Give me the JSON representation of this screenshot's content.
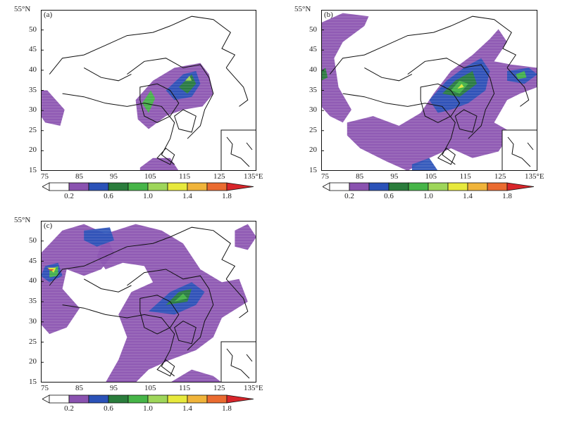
{
  "lat_ticks": [
    "15",
    "20",
    "25",
    "30",
    "35",
    "40",
    "45",
    "50"
  ],
  "lat_top_label": "55°N",
  "lon_ticks": [
    "75",
    "85",
    "95",
    "105",
    "115",
    "125"
  ],
  "lon_end_label": "135°E",
  "colorbar": {
    "labels": [
      "0.2",
      "0.6",
      "1.0",
      "1.4",
      "1.8"
    ],
    "colors": [
      "#8a52b0",
      "#2b52b8",
      "#2a7d3c",
      "#46b548",
      "#9ed65a",
      "#e7e93c",
      "#f0b43a",
      "#ea6b30",
      "#d8252a"
    ]
  },
  "panels": [
    {
      "tag": "(a)"
    },
    {
      "tag": "(b)"
    },
    {
      "tag": "(c)"
    }
  ],
  "colors": {
    "purple": "#8a52b0",
    "blue": "#2b52b8",
    "darkgreen": "#2a7d3c",
    "green": "#46b548",
    "lightgreen": "#9ed65a",
    "yellow": "#e7e93c",
    "orange": "#f0b43a",
    "red": "#d8252a"
  }
}
